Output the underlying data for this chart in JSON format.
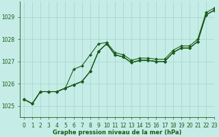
{
  "title": "Graphe pression niveau de la mer (hPa)",
  "background_color": "#c5ece6",
  "grid_color": "#a8d8d0",
  "line_color": "#1a5c1a",
  "xlim": [
    -0.5,
    23
  ],
  "ylim": [
    1024.5,
    1029.7
  ],
  "yticks": [
    1025,
    1026,
    1027,
    1028,
    1029
  ],
  "xtick_labels": [
    "0",
    "1",
    "2",
    "3",
    "4",
    "5",
    "6",
    "7",
    "8",
    "9",
    "10",
    "11",
    "12",
    "13",
    "14",
    "15",
    "16",
    "17",
    "18",
    "19",
    "20",
    "21",
    "22",
    "23"
  ],
  "series": [
    [
      1025.3,
      1025.1,
      1025.65,
      1025.65,
      1025.65,
      1025.8,
      1025.95,
      1026.1,
      1026.6,
      1027.5,
      1027.85,
      1027.35,
      1027.25,
      1027.0,
      1027.1,
      1027.1,
      1027.05,
      1027.05,
      1027.45,
      1027.65,
      1027.65,
      1027.95,
      1029.15,
      1029.35
    ],
    [
      1025.3,
      1025.1,
      1025.65,
      1025.65,
      1025.65,
      1025.8,
      1026.6,
      1026.6,
      1027.05,
      1027.8,
      1027.85,
      1027.35,
      1027.25,
      1027.0,
      1027.1,
      1027.1,
      1027.05,
      1027.05,
      1027.45,
      1027.65,
      1027.65,
      1027.95,
      1029.15,
      1029.35
    ],
    [
      1025.3,
      1025.1,
      1025.65,
      1025.65,
      1025.65,
      1025.8,
      1025.95,
      1026.1,
      1026.6,
      1027.5,
      1027.85,
      1027.35,
      1027.25,
      1027.0,
      1027.1,
      1027.1,
      1027.05,
      1027.05,
      1027.45,
      1027.65,
      1027.65,
      1027.95,
      1029.15,
      1029.35
    ],
    [
      1025.3,
      1025.1,
      1025.65,
      1025.65,
      1025.65,
      1025.8,
      1025.95,
      1026.1,
      1026.6,
      1027.5,
      1027.85,
      1027.35,
      1027.25,
      1027.0,
      1027.1,
      1027.1,
      1027.05,
      1027.05,
      1027.45,
      1027.65,
      1027.65,
      1027.95,
      1029.15,
      1029.35
    ]
  ],
  "figsize": [
    3.2,
    2.0
  ],
  "dpi": 100,
  "label_fontsize": 5.5,
  "xlabel_fontsize": 6.0,
  "marker_size": 2.2,
  "linewidth": 0.8
}
